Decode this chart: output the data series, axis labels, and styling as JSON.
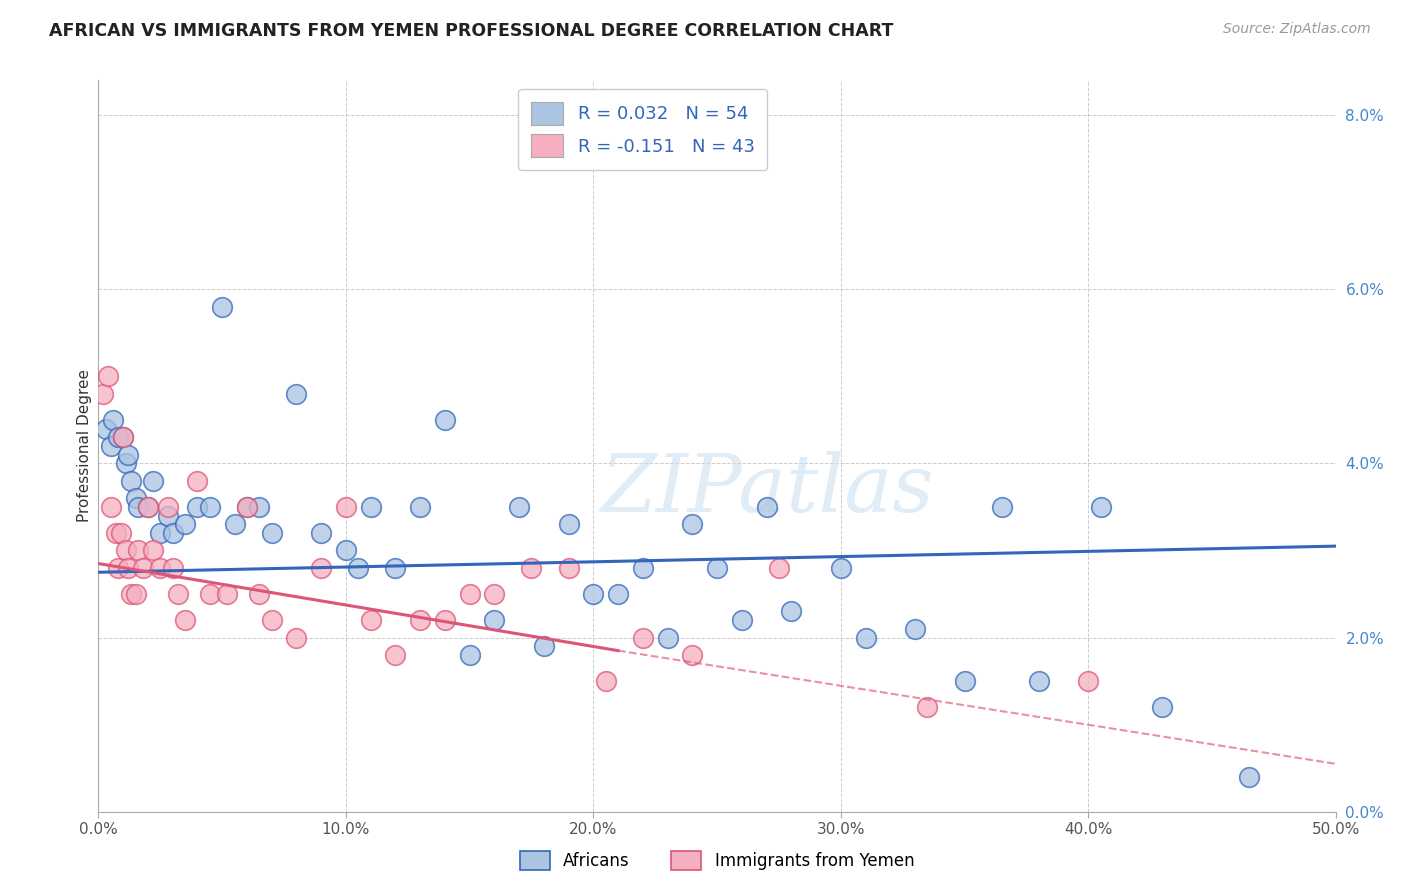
{
  "title": "AFRICAN VS IMMIGRANTS FROM YEMEN PROFESSIONAL DEGREE CORRELATION CHART",
  "source": "Source: ZipAtlas.com",
  "xlabel_ticks": [
    "0.0%",
    "10.0%",
    "20.0%",
    "30.0%",
    "40.0%",
    "50.0%"
  ],
  "xlabel_vals": [
    0.0,
    10.0,
    20.0,
    30.0,
    40.0,
    50.0
  ],
  "ylabel": "Professional Degree",
  "ylabel_ticks": [
    "0.0%",
    "2.0%",
    "4.0%",
    "6.0%",
    "8.0%"
  ],
  "ylabel_vals": [
    0.0,
    2.0,
    4.0,
    6.0,
    8.0
  ],
  "xlim": [
    0.0,
    50.0
  ],
  "ylim": [
    0.0,
    8.4
  ],
  "watermark": "ZIPatlas",
  "legend_label1": "Africans",
  "legend_label2": "Immigrants from Yemen",
  "r1": 0.032,
  "n1": 54,
  "r2": -0.151,
  "n2": 43,
  "color_blue": "#aac4e2",
  "color_pink": "#f5afc0",
  "line_color_blue": "#3366bb",
  "line_color_pink": "#dd5577",
  "africans_x": [
    0.3,
    0.5,
    0.6,
    0.8,
    1.0,
    1.1,
    1.2,
    1.3,
    1.5,
    1.6,
    2.0,
    2.2,
    2.5,
    2.8,
    3.0,
    3.5,
    4.0,
    4.5,
    5.0,
    5.5,
    6.0,
    6.5,
    7.0,
    8.0,
    9.0,
    10.0,
    10.5,
    11.0,
    12.0,
    13.0,
    14.0,
    15.0,
    16.0,
    17.0,
    18.0,
    19.0,
    20.0,
    21.0,
    22.0,
    23.0,
    24.0,
    25.0,
    26.0,
    27.0,
    28.0,
    30.0,
    31.0,
    33.0,
    35.0,
    36.5,
    38.0,
    40.5,
    43.0,
    46.5
  ],
  "africans_y": [
    4.4,
    4.2,
    4.5,
    4.3,
    4.3,
    4.0,
    4.1,
    3.8,
    3.6,
    3.5,
    3.5,
    3.8,
    3.2,
    3.4,
    3.2,
    3.3,
    3.5,
    3.5,
    5.8,
    3.3,
    3.5,
    3.5,
    3.2,
    4.8,
    3.2,
    3.0,
    2.8,
    3.5,
    2.8,
    3.5,
    4.5,
    1.8,
    2.2,
    3.5,
    1.9,
    3.3,
    2.5,
    2.5,
    2.8,
    2.0,
    3.3,
    2.8,
    2.2,
    3.5,
    2.3,
    2.8,
    2.0,
    2.1,
    1.5,
    3.5,
    1.5,
    3.5,
    1.2,
    0.4
  ],
  "yemen_x": [
    0.2,
    0.4,
    0.5,
    0.7,
    0.8,
    0.9,
    1.0,
    1.1,
    1.2,
    1.3,
    1.5,
    1.6,
    1.8,
    2.0,
    2.2,
    2.5,
    2.8,
    3.0,
    3.2,
    3.5,
    4.0,
    4.5,
    5.2,
    6.0,
    6.5,
    7.0,
    8.0,
    9.0,
    10.0,
    11.0,
    12.0,
    13.0,
    14.0,
    15.0,
    16.0,
    17.5,
    19.0,
    20.5,
    22.0,
    24.0,
    27.5,
    33.5,
    40.0
  ],
  "yemen_y": [
    4.8,
    5.0,
    3.5,
    3.2,
    2.8,
    3.2,
    4.3,
    3.0,
    2.8,
    2.5,
    2.5,
    3.0,
    2.8,
    3.5,
    3.0,
    2.8,
    3.5,
    2.8,
    2.5,
    2.2,
    3.8,
    2.5,
    2.5,
    3.5,
    2.5,
    2.2,
    2.0,
    2.8,
    3.5,
    2.2,
    1.8,
    2.2,
    2.2,
    2.5,
    2.5,
    2.8,
    2.8,
    1.5,
    2.0,
    1.8,
    2.8,
    1.2,
    1.5
  ],
  "blue_line_start_y": 2.75,
  "blue_line_end_y": 3.05,
  "pink_line_start_y": 2.85,
  "pink_line_solid_end_x": 21.0,
  "pink_line_solid_end_y": 1.85,
  "pink_line_dashed_end_x": 50.0,
  "pink_line_dashed_end_y": 0.55,
  "background_color": "#ffffff",
  "grid_color": "#cccccc"
}
